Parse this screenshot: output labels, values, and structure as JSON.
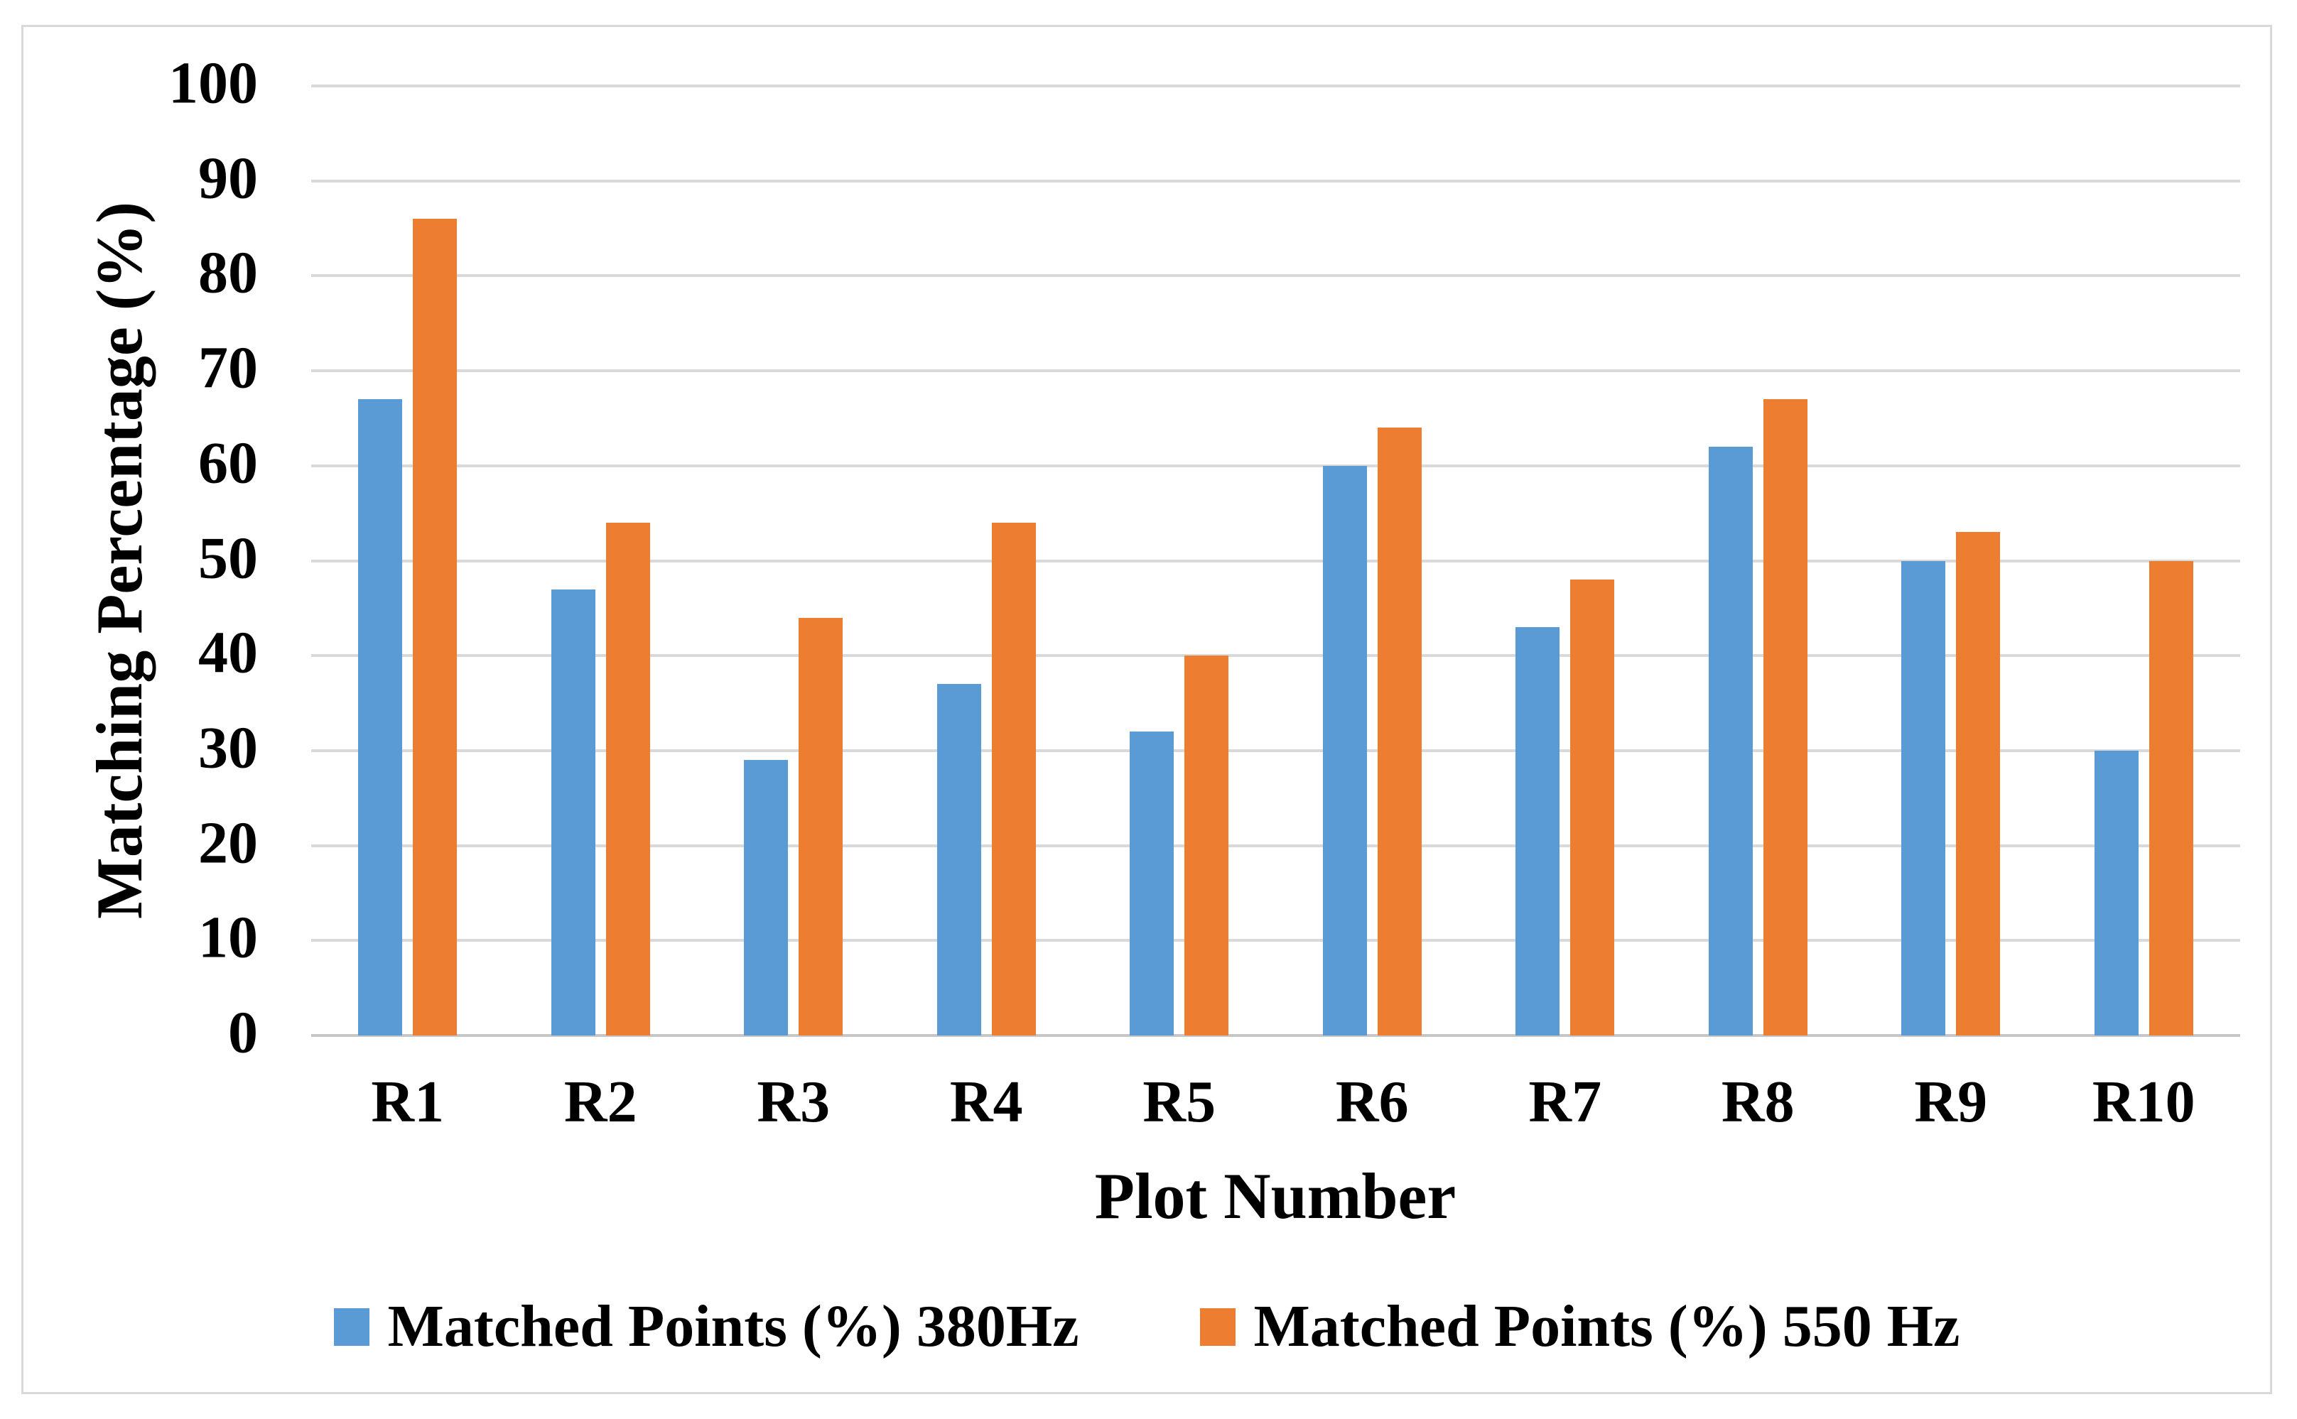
{
  "figure": {
    "background": "#FFFFFF",
    "border_color": "#D9D9D9"
  },
  "chart_data": {
    "type": "bar",
    "title": "",
    "categories": [
      "R1",
      "R2",
      "R3",
      "R4",
      "R5",
      "R6",
      "R7",
      "R8",
      "R9",
      "R10"
    ],
    "series": [
      {
        "name": "Matched Points (%) 380Hz",
        "color": "#5B9BD5",
        "values": [
          67,
          47,
          29,
          37,
          32,
          60,
          43,
          62,
          50,
          30
        ]
      },
      {
        "name": "Matched Points (%) 550 Hz",
        "color": "#ED7D31",
        "values": [
          86,
          54,
          44,
          54,
          40,
          64,
          48,
          67,
          53,
          50
        ]
      }
    ],
    "xlabel": "Plot Number",
    "ylabel": "Matching Percentage (%)",
    "ylim": [
      0,
      100
    ],
    "ytick_step": 10,
    "yticks": [
      0,
      10,
      20,
      30,
      40,
      50,
      60,
      70,
      80,
      90,
      100
    ],
    "grid": true,
    "gridline_color": "#D9D9D9",
    "axis_line_color": "#C6C6C6",
    "text_color": "#000000",
    "legend_position": "bottom"
  }
}
